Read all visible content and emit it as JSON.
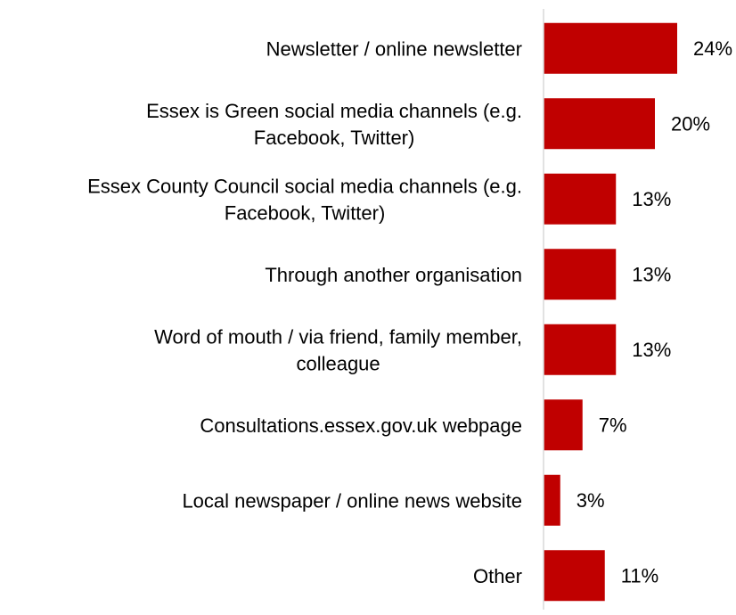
{
  "chart_data": {
    "type": "bar",
    "orientation": "horizontal",
    "title": "",
    "xlabel": "",
    "ylabel": "",
    "xlim": [
      0,
      25
    ],
    "grid": false,
    "legend": "none",
    "bar_color": "#C00000",
    "axis_color": "#d9d9d9",
    "value_suffix": "%",
    "categories": [
      [
        "Newsletter / online newsletter"
      ],
      [
        "Essex is Green social media channels (e.g.",
        "Facebook, Twitter)"
      ],
      [
        "Essex County Council social media channels (e.g.",
        "Facebook, Twitter)"
      ],
      [
        "Through another organisation"
      ],
      [
        "Word of mouth / via friend, family member,",
        "colleague"
      ],
      [
        "Consultations.essex.gov.uk webpage"
      ],
      [
        "Local newspaper / online news website"
      ],
      [
        "Other"
      ]
    ],
    "values": [
      24,
      20,
      13,
      13,
      13,
      7,
      3,
      11
    ]
  }
}
